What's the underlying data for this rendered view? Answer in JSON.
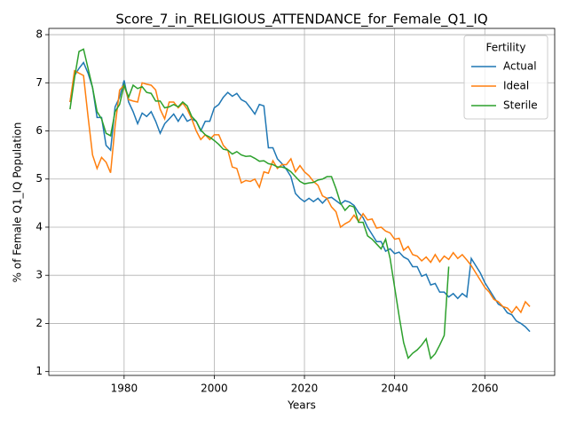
{
  "chart_data": {
    "type": "line",
    "title": "Score_7_in_RELIGIOUS_ATTENDANCE_for_Female_Q1_IQ",
    "x_label": "Years",
    "y_label": "% of Female Q1_IQ Population",
    "legend_title": "Fertility",
    "legend_location": "upper right",
    "grid": true,
    "xlim": [
      1963.3,
      2075.5
    ],
    "ylim": [
      0.92,
      8.13
    ],
    "xticks": [
      1980,
      2000,
      2020,
      2040,
      2060
    ],
    "yticks": [
      1,
      2,
      3,
      4,
      5,
      6,
      7,
      8
    ],
    "x": [
      1968,
      1969,
      1970,
      1971,
      1972,
      1973,
      1974,
      1975,
      1976,
      1977,
      1978,
      1979,
      1980,
      1981,
      1982,
      1983,
      1984,
      1985,
      1986,
      1987,
      1988,
      1989,
      1990,
      1991,
      1992,
      1993,
      1994,
      1995,
      1996,
      1997,
      1998,
      1999,
      2000,
      2001,
      2002,
      2003,
      2004,
      2005,
      2006,
      2007,
      2008,
      2009,
      2010,
      2011,
      2012,
      2013,
      2014,
      2015,
      2016,
      2017,
      2018,
      2019,
      2020,
      2021,
      2022,
      2023,
      2024,
      2025,
      2026,
      2027,
      2028,
      2029,
      2030,
      2031,
      2032,
      2033,
      2034,
      2035,
      2036,
      2037,
      2038,
      2039,
      2040,
      2041,
      2042,
      2043,
      2044,
      2045,
      2046,
      2047,
      2048,
      2049,
      2050,
      2051,
      2052,
      2053,
      2054,
      2055,
      2056,
      2057,
      2058,
      2059,
      2060,
      2061,
      2062,
      2063,
      2064,
      2065,
      2066,
      2067,
      2068,
      2069,
      2070
    ],
    "series": [
      {
        "name": "Actual",
        "color": "#1f77b4",
        "values": [
          6.6,
          7.15,
          7.3,
          7.42,
          7.2,
          6.9,
          6.28,
          6.28,
          5.7,
          5.6,
          6.5,
          6.7,
          7.05,
          6.6,
          6.4,
          6.15,
          6.37,
          6.3,
          6.4,
          6.2,
          5.95,
          6.15,
          6.25,
          6.35,
          6.2,
          6.35,
          6.2,
          6.25,
          6.2,
          6.0,
          6.2,
          6.2,
          6.48,
          6.55,
          6.7,
          6.8,
          6.72,
          6.78,
          6.65,
          6.6,
          6.48,
          6.35,
          6.55,
          6.52,
          5.65,
          5.65,
          5.42,
          5.32,
          5.2,
          5.05,
          4.7,
          4.6,
          4.53,
          4.6,
          4.53,
          4.6,
          4.5,
          4.6,
          4.62,
          4.55,
          4.48,
          4.55,
          4.52,
          4.45,
          4.3,
          4.2,
          4.0,
          3.85,
          3.7,
          3.7,
          3.5,
          3.55,
          3.45,
          3.48,
          3.38,
          3.33,
          3.18,
          3.18,
          2.98,
          3.02,
          2.8,
          2.83,
          2.65,
          2.65,
          2.55,
          2.62,
          2.52,
          2.62,
          2.55,
          3.35,
          3.2,
          3.05,
          2.85,
          2.7,
          2.55,
          2.4,
          2.35,
          2.22,
          2.18,
          2.05,
          2.0,
          1.93,
          1.83
        ]
      },
      {
        "name": "Ideal",
        "color": "#ff7f0e",
        "values": [
          6.6,
          7.25,
          7.2,
          7.15,
          6.3,
          5.5,
          5.22,
          5.45,
          5.35,
          5.13,
          6.1,
          6.85,
          6.95,
          6.65,
          6.62,
          6.6,
          7.0,
          6.97,
          6.95,
          6.85,
          6.45,
          6.25,
          6.6,
          6.6,
          6.48,
          6.58,
          6.45,
          6.25,
          6.0,
          5.82,
          5.92,
          5.82,
          5.92,
          5.92,
          5.7,
          5.6,
          5.25,
          5.22,
          4.92,
          4.97,
          4.95,
          5.0,
          4.83,
          5.15,
          5.12,
          5.38,
          5.22,
          5.3,
          5.3,
          5.42,
          5.15,
          5.28,
          5.15,
          5.07,
          4.95,
          4.87,
          4.65,
          4.6,
          4.42,
          4.32,
          4.0,
          4.07,
          4.12,
          4.25,
          4.12,
          4.28,
          4.15,
          4.17,
          3.98,
          4.0,
          3.92,
          3.88,
          3.75,
          3.77,
          3.52,
          3.6,
          3.43,
          3.4,
          3.3,
          3.38,
          3.27,
          3.43,
          3.28,
          3.4,
          3.33,
          3.47,
          3.35,
          3.43,
          3.32,
          3.2,
          3.05,
          2.9,
          2.75,
          2.65,
          2.5,
          2.45,
          2.35,
          2.32,
          2.22,
          2.35,
          2.23,
          2.45,
          2.35
        ]
      },
      {
        "name": "Sterile",
        "color": "#2ca02c",
        "values": [
          6.45,
          7.1,
          7.65,
          7.7,
          7.3,
          6.9,
          6.4,
          6.25,
          5.95,
          5.9,
          6.4,
          6.55,
          6.95,
          6.7,
          6.95,
          6.88,
          6.92,
          6.8,
          6.78,
          6.62,
          6.62,
          6.48,
          6.5,
          6.55,
          6.5,
          6.6,
          6.52,
          6.3,
          6.2,
          6.02,
          5.92,
          5.87,
          5.8,
          5.72,
          5.62,
          5.6,
          5.52,
          5.57,
          5.5,
          5.47,
          5.48,
          5.43,
          5.37,
          5.38,
          5.32,
          5.3,
          5.25,
          5.25,
          5.22,
          5.15,
          5.05,
          4.95,
          4.9,
          4.92,
          4.93,
          4.98,
          5.0,
          5.05,
          5.05,
          4.8,
          4.5,
          4.35,
          4.45,
          4.42,
          4.1,
          4.1,
          3.82,
          3.75,
          3.65,
          3.55,
          3.75,
          3.35,
          2.75,
          2.15,
          1.6,
          1.28,
          1.38,
          1.45,
          1.55,
          1.68,
          1.27,
          1.37,
          1.55,
          1.75,
          3.18,
          null,
          null,
          null,
          null,
          null,
          null,
          null,
          null,
          null,
          null,
          null,
          null,
          null,
          null,
          null,
          null,
          null,
          null
        ]
      }
    ]
  }
}
